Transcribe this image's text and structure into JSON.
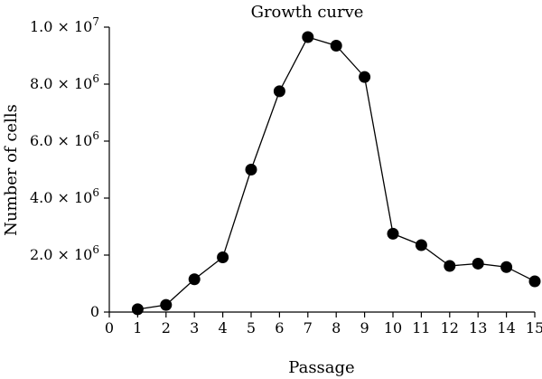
{
  "chart_data": {
    "type": "line",
    "title": "Growth curve",
    "xlabel": "Passage",
    "ylabel": "Number of cells",
    "xlim": [
      0,
      15
    ],
    "ylim": [
      0,
      10000000
    ],
    "x_ticks": [
      "0",
      "1",
      "2",
      "3",
      "4",
      "5",
      "6",
      "7",
      "8",
      "9",
      "10",
      "11",
      "12",
      "13",
      "14",
      "15"
    ],
    "y_ticks": [
      {
        "value": 0,
        "mantissa": "0",
        "exponent": ""
      },
      {
        "value": 2000000,
        "mantissa": "2.0 × 10",
        "exponent": "6"
      },
      {
        "value": 4000000,
        "mantissa": "4.0 × 10",
        "exponent": "6"
      },
      {
        "value": 6000000,
        "mantissa": "6.0 × 10",
        "exponent": "6"
      },
      {
        "value": 8000000,
        "mantissa": "8.0 × 10",
        "exponent": "6"
      },
      {
        "value": 10000000,
        "mantissa": "1.0 × 10",
        "exponent": "7"
      }
    ],
    "grid": false,
    "series": [
      {
        "x": [
          1,
          2,
          3,
          4,
          5,
          6,
          7,
          8,
          9,
          10,
          11,
          12,
          13,
          14,
          15
        ],
        "y": [
          100000,
          250000,
          1150000,
          1920000,
          5000000,
          7750000,
          9650000,
          9350000,
          8250000,
          2750000,
          2350000,
          1620000,
          1700000,
          1580000,
          1080000
        ]
      }
    ]
  }
}
